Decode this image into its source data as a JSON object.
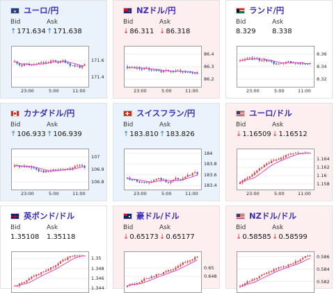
{
  "labels": {
    "bid": "Bid",
    "ask": "Ask"
  },
  "colors": {
    "up_arrow": "#2a6fd6",
    "down_arrow": "#d23a3a",
    "candle_up": "#e03b3b",
    "candle_down": "#2f59c9",
    "ma_line": "#d548c9",
    "pair_name": "#3a2eb0"
  },
  "cards": [
    {
      "id": "eurjpy",
      "name": "ユーロ/円",
      "flag": "eu",
      "trend": "up",
      "bid": "171.634",
      "ask": "171.638",
      "bid_dir": "up",
      "ask_dir": "up",
      "chart": {
        "ymin": 171.3,
        "ymax": 171.75,
        "yticks": [
          "171.6",
          "171.4"
        ],
        "yvals": [
          171.6,
          171.4
        ],
        "xticks": [
          "23:00",
          "5:00",
          "11:00"
        ],
        "seed": 11,
        "drift": -0.1,
        "vol": 0.06,
        "start": 171.58
      }
    },
    {
      "id": "nzdjpy",
      "name": "NZドル/円",
      "flag": "nz",
      "trend": "down",
      "bid": "86.311",
      "ask": "86.318",
      "bid_dir": "down",
      "ask_dir": "down",
      "chart": {
        "ymin": 86.15,
        "ymax": 86.45,
        "yticks": [
          "86.4",
          "86.3",
          "86.2"
        ],
        "yvals": [
          86.4,
          86.3,
          86.2
        ],
        "xticks": [
          "23:00",
          "5:00",
          "11:00"
        ],
        "seed": 23,
        "drift": -0.05,
        "vol": 0.04,
        "start": 86.3
      }
    },
    {
      "id": "zarjpy",
      "name": "ランド/円",
      "flag": "za",
      "trend": "flat",
      "bid": "8.329",
      "ask": "8.338",
      "bid_dir": "none",
      "ask_dir": "none",
      "chart": {
        "ymin": 8.31,
        "ymax": 8.37,
        "yticks": [
          "8.36",
          "8.34",
          "8.32"
        ],
        "yvals": [
          8.36,
          8.34,
          8.32
        ],
        "xticks": [
          "23:00",
          "5:00",
          "11:00"
        ],
        "seed": 37,
        "drift": -0.35,
        "vol": 0.04,
        "start": 8.35
      }
    },
    {
      "id": "cadjpy",
      "name": "カナダドル/円",
      "flag": "ca",
      "trend": "up",
      "bid": "106.933",
      "ask": "106.939",
      "bid_dir": "up",
      "ask_dir": "up",
      "chart": {
        "ymin": 106.75,
        "ymax": 107.05,
        "yticks": [
          "107",
          "106.9",
          "106.8"
        ],
        "yvals": [
          107,
          106.9,
          106.8
        ],
        "xticks": [
          "23:00",
          "5:00",
          "11:00"
        ],
        "seed": 41,
        "drift": 0.02,
        "vol": 0.05,
        "start": 106.92
      }
    },
    {
      "id": "chfjpy",
      "name": "スイスフラン/円",
      "flag": "ch",
      "trend": "up",
      "bid": "183.810",
      "ask": "183.826",
      "bid_dir": "up",
      "ask_dir": "up",
      "chart": {
        "ymin": 183.35,
        "ymax": 184.05,
        "yticks": [
          "184",
          "183.8",
          "183.6",
          "183.4"
        ],
        "yvals": [
          184,
          183.8,
          183.6,
          183.4
        ],
        "xticks": [
          "23:00",
          "5:00",
          "11:00"
        ],
        "seed": 53,
        "drift": 0.1,
        "vol": 0.06,
        "start": 183.55
      }
    },
    {
      "id": "eurusd",
      "name": "ユーロ/ドル",
      "flag": "us",
      "trend": "down",
      "bid": "1.16509",
      "ask": "1.16512",
      "bid_dir": "down",
      "ask_dir": "down",
      "chart": {
        "ymin": 1.157,
        "ymax": 1.166,
        "yticks": [
          "1.164",
          "1.162",
          "1.16",
          "1.158"
        ],
        "yvals": [
          1.164,
          1.162,
          1.16,
          1.158
        ],
        "xticks": [
          "23:00",
          "5:00",
          "11:00"
        ],
        "seed": 61,
        "drift": 0.95,
        "vol": 0.03,
        "start": 1.158
      }
    },
    {
      "id": "gbpusd",
      "name": "英ポンド/ドル",
      "flag": "gb",
      "trend": "flat",
      "bid": "1.35108",
      "ask": "1.35118",
      "bid_dir": "none",
      "ask_dir": "none",
      "chart": {
        "ymin": 1.3435,
        "ymax": 1.351,
        "yticks": [
          "1.35",
          "1.348",
          "1.346",
          "1.344"
        ],
        "yvals": [
          1.35,
          1.348,
          1.346,
          1.344
        ],
        "xticks": [],
        "seed": 71,
        "drift": 0.95,
        "vol": 0.03,
        "start": 1.3445
      }
    },
    {
      "id": "audusd",
      "name": "豪ドル/ドル",
      "flag": "au",
      "trend": "down",
      "bid": "0.65173",
      "ask": "0.65177",
      "bid_dir": "down",
      "ask_dir": "down",
      "chart": {
        "ymin": 0.6445,
        "ymax": 0.6535,
        "yticks": [
          "0.65",
          "0.648"
        ],
        "yvals": [
          0.65,
          0.648
        ],
        "xticks": [],
        "seed": 83,
        "drift": 0.85,
        "vol": 0.03,
        "start": 0.6455
      }
    },
    {
      "id": "nzdusd",
      "name": "NZドル/ドル",
      "flag": "us",
      "trend": "down",
      "bid": "0.58585",
      "ask": "0.58599",
      "bid_dir": "down",
      "ask_dir": "down",
      "chart": {
        "ymin": 0.5805,
        "ymax": 0.5865,
        "yticks": [
          "0.586",
          "0.584",
          "0.582"
        ],
        "yvals": [
          0.586,
          0.584,
          0.582
        ],
        "xticks": [],
        "seed": 97,
        "drift": 0.9,
        "vol": 0.03,
        "start": 0.5812
      }
    }
  ]
}
